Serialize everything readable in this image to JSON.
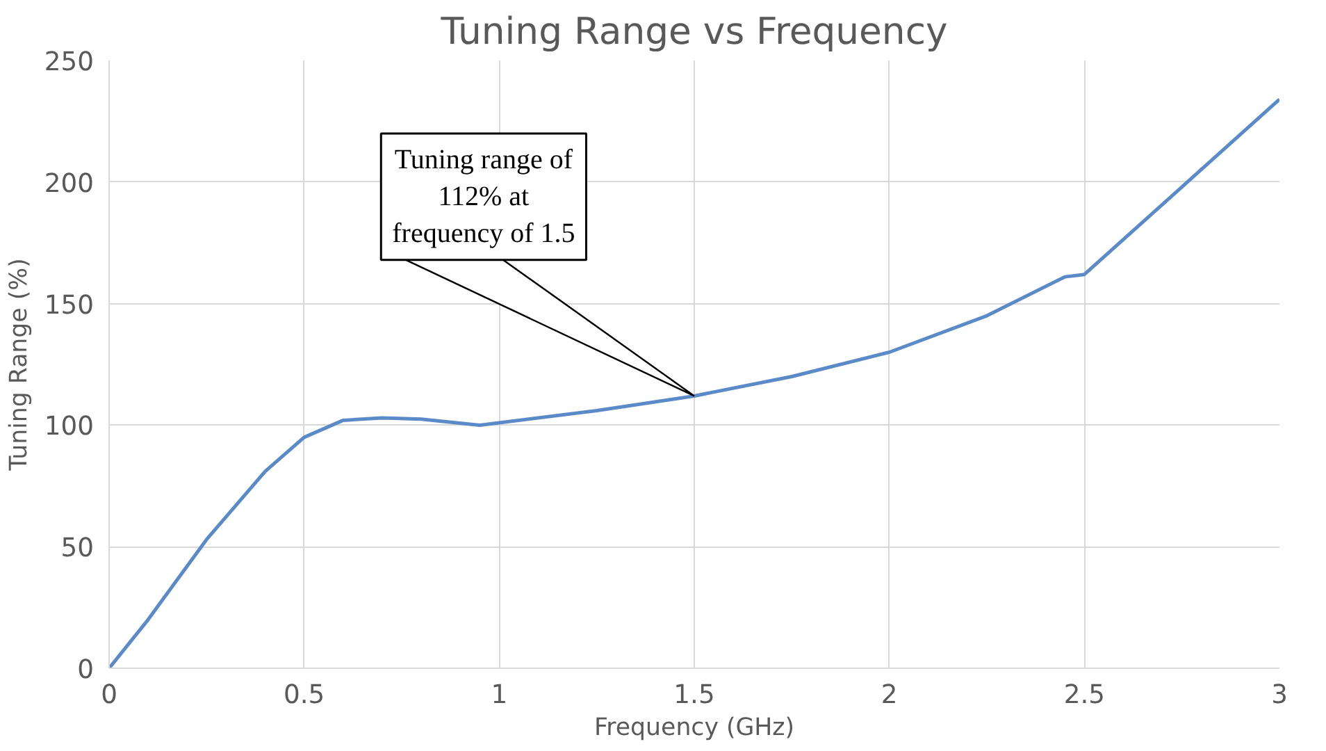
{
  "chart_data": {
    "type": "line",
    "title": "Tuning Range vs Frequency",
    "xlabel": "Frequency (GHz)",
    "ylabel": "Tuning Range (%)",
    "x": [
      0,
      0.1,
      0.25,
      0.4,
      0.5,
      0.6,
      0.7,
      0.8,
      0.95,
      1.0,
      1.25,
      1.5,
      1.75,
      2.0,
      2.25,
      2.45,
      2.5,
      2.75,
      3.0
    ],
    "series": [
      {
        "color": "#5b8ac9",
        "values": [
          0,
          20,
          53,
          81,
          95,
          102,
          103,
          102.5,
          100,
          101,
          106,
          112,
          120,
          130,
          145,
          161,
          162,
          198,
          234
        ]
      }
    ],
    "xlim": [
      0,
      3
    ],
    "xticks": [
      0,
      0.5,
      1,
      1.5,
      2,
      2.5,
      3
    ],
    "ylim": [
      0,
      250
    ],
    "yticks": [
      0,
      50,
      100,
      150,
      200,
      250
    ],
    "grid": true,
    "marker": "none",
    "line_style": "solid",
    "annotations": [
      {
        "text": "Tuning range of 112% at frequency of 1.5",
        "x": 1.5,
        "y": 112
      }
    ]
  }
}
